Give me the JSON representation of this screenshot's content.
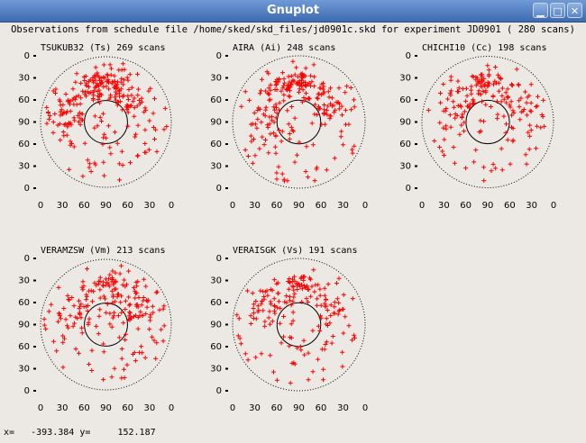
{
  "window": {
    "title": "Gnuplot",
    "buttons": {
      "minimize": "minimize-icon",
      "maximize": "maximize-icon",
      "close": "close-icon"
    }
  },
  "plot": {
    "header": "Observations from schedule file /home/sked/skd_files/jd0901c.skd for experiment JD0901   ( 280 scans)",
    "y_tick_labels": [
      "0",
      "30",
      "60",
      "90",
      "60",
      "30",
      "0"
    ],
    "x_tick_labels": [
      "0",
      "30",
      "60",
      "90",
      "60",
      "30",
      "0"
    ],
    "point_color": "#ff0000",
    "stations": [
      {
        "label": "TSUKUB32 (Ts)  269 scans",
        "scans": 269
      },
      {
        "label": "AIRA (Ai)  248 scans",
        "scans": 248
      },
      {
        "label": "CHICHI10 (Cc)  198 scans",
        "scans": 198
      },
      {
        "label": "VERAMZSW (Vm)  213 scans",
        "scans": 213
      },
      {
        "label": "VERAISGK (Vs)  191 scans",
        "scans": 191
      }
    ]
  },
  "status": {
    "x_label": "x=",
    "x_value": "-393.384",
    "y_label": "y=",
    "y_value": "152.187"
  }
}
